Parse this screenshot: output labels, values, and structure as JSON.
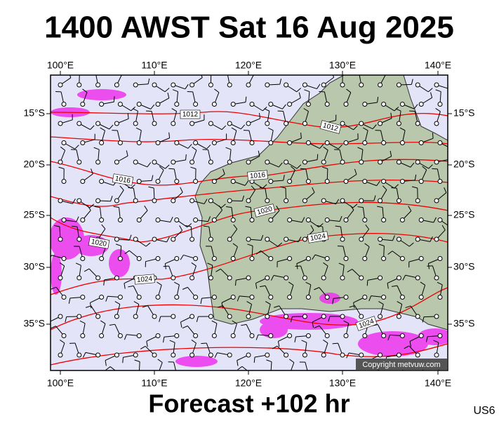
{
  "title": "1400 AWST Sat 16 Aug 2025",
  "lon_labels": [
    "100°E",
    "110°E",
    "120°E",
    "130°E",
    "140°E"
  ],
  "lat_labels": [
    "15°S",
    "20°S",
    "25°S",
    "30°S",
    "35°S"
  ],
  "isobar_labels": [
    "1012",
    "1012",
    "1016",
    "1016",
    "1020",
    "1020",
    "1024",
    "1024",
    "1024"
  ],
  "copyright": "Copyright metvuw.com",
  "footer": "Forecast +102 hr",
  "region": "US6"
}
